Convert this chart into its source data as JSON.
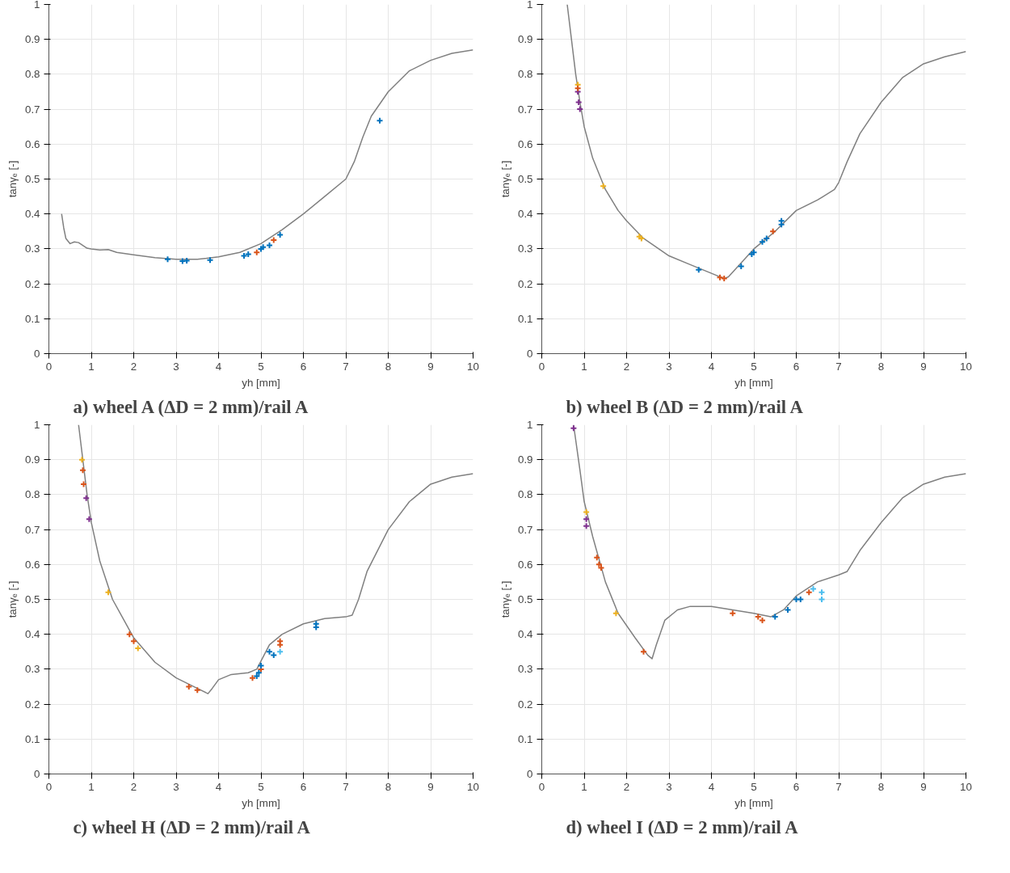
{
  "chart_data": [
    {
      "type": "line",
      "title": "a) wheel A (ΔD = 2 mm)/rail A",
      "xlabel": "yh [mm]",
      "ylabel": "tanγₑ [-]",
      "xlim": [
        0,
        10
      ],
      "ylim": [
        0,
        1
      ],
      "xticks": [
        0,
        1,
        2,
        3,
        4,
        5,
        6,
        7,
        8,
        9,
        10
      ],
      "yticks": [
        0,
        0.1,
        0.2,
        0.3,
        0.4,
        0.5,
        0.6,
        0.7,
        0.8,
        0.9,
        1
      ],
      "grid": true,
      "series": [
        {
          "color": "#808080",
          "marker": "none",
          "x": [
            0.3,
            0.35,
            0.4,
            0.5,
            0.6,
            0.7,
            0.8,
            0.9,
            1.0,
            1.2,
            1.4,
            1.6,
            2,
            2.5,
            3,
            3.5,
            4,
            4.5,
            5,
            5.5,
            6,
            6.5,
            7,
            7.2,
            7.4,
            7.6,
            8,
            8.5,
            9,
            9.5,
            10
          ],
          "values": [
            0.4,
            0.36,
            0.33,
            0.315,
            0.32,
            0.318,
            0.31,
            0.302,
            0.3,
            0.297,
            0.298,
            0.29,
            0.283,
            0.275,
            0.27,
            0.27,
            0.277,
            0.29,
            0.315,
            0.355,
            0.4,
            0.45,
            0.5,
            0.55,
            0.62,
            0.68,
            0.75,
            0.81,
            0.84,
            0.86,
            0.87
          ]
        },
        {
          "type": "scatter",
          "color": "#0072bd",
          "marker": "cross",
          "x": [
            2.8,
            3.15,
            3.25,
            3.8,
            4.6,
            4.7,
            5.0,
            5.05,
            5.2,
            5.45,
            7.8
          ],
          "values": [
            0.27,
            0.265,
            0.266,
            0.268,
            0.28,
            0.285,
            0.3,
            0.305,
            0.31,
            0.34,
            0.667
          ]
        },
        {
          "type": "scatter",
          "color": "#d95319",
          "marker": "cross",
          "x": [
            4.9,
            5.3
          ],
          "values": [
            0.29,
            0.325
          ]
        }
      ]
    },
    {
      "type": "line",
      "title": "b) wheel B (ΔD = 2 mm)/rail A",
      "xlabel": "yh [mm]",
      "ylabel": "tanγₑ [-]",
      "xlim": [
        0,
        10
      ],
      "ylim": [
        0,
        1
      ],
      "xticks": [
        0,
        1,
        2,
        3,
        4,
        5,
        6,
        7,
        8,
        9,
        10
      ],
      "yticks": [
        0,
        0.1,
        0.2,
        0.3,
        0.4,
        0.5,
        0.6,
        0.7,
        0.8,
        0.9,
        1
      ],
      "grid": true,
      "series": [
        {
          "color": "#808080",
          "marker": "none",
          "x": [
            0.6,
            0.7,
            0.8,
            0.9,
            1.0,
            1.2,
            1.5,
            1.8,
            2.0,
            2.4,
            3,
            3.5,
            4,
            4.3,
            4.4,
            4.7,
            5,
            5.5,
            6,
            6.5,
            6.9,
            7.0,
            7.2,
            7.5,
            8,
            8.5,
            9,
            9.5,
            10
          ],
          "values": [
            1.0,
            0.9,
            0.8,
            0.72,
            0.65,
            0.56,
            0.47,
            0.41,
            0.38,
            0.33,
            0.28,
            0.255,
            0.23,
            0.215,
            0.22,
            0.26,
            0.3,
            0.35,
            0.41,
            0.44,
            0.47,
            0.49,
            0.55,
            0.63,
            0.72,
            0.79,
            0.83,
            0.85,
            0.865
          ]
        },
        {
          "type": "scatter",
          "color": "#7e2f8e",
          "marker": "cross",
          "x": [
            0.85,
            0.87,
            0.9
          ],
          "values": [
            0.75,
            0.72,
            0.7
          ]
        },
        {
          "type": "scatter",
          "color": "#edb120",
          "marker": "cross",
          "x": [
            0.85,
            1.45,
            2.3,
            2.35
          ],
          "values": [
            0.77,
            0.48,
            0.335,
            0.33
          ]
        },
        {
          "type": "scatter",
          "color": "#d95319",
          "marker": "cross",
          "x": [
            0.85,
            4.2,
            4.3,
            5.45
          ],
          "values": [
            0.76,
            0.218,
            0.215,
            0.35
          ]
        },
        {
          "type": "scatter",
          "color": "#0072bd",
          "marker": "cross",
          "x": [
            3.7,
            4.7,
            4.95,
            5.0,
            5.2,
            5.3,
            5.65,
            5.65
          ],
          "values": [
            0.24,
            0.25,
            0.285,
            0.29,
            0.32,
            0.33,
            0.37,
            0.38
          ]
        }
      ]
    },
    {
      "type": "line",
      "title": "c) wheel H (ΔD = 2 mm)/rail A",
      "xlabel": "yh [mm]",
      "ylabel": "tanγₑ [-]",
      "xlim": [
        0,
        10
      ],
      "ylim": [
        0,
        1
      ],
      "xticks": [
        0,
        1,
        2,
        3,
        4,
        5,
        6,
        7,
        8,
        9,
        10
      ],
      "yticks": [
        0,
        0.1,
        0.2,
        0.3,
        0.4,
        0.5,
        0.6,
        0.7,
        0.8,
        0.9,
        1
      ],
      "grid": true,
      "series": [
        {
          "color": "#808080",
          "marker": "none",
          "x": [
            0.7,
            0.8,
            0.9,
            1.0,
            1.2,
            1.5,
            2,
            2.5,
            3,
            3.5,
            3.75,
            3.85,
            4,
            4.3,
            4.7,
            4.9,
            5.2,
            5.5,
            6,
            6.5,
            7,
            7.15,
            7.3,
            7.5,
            8,
            8.5,
            9,
            9.5,
            10
          ],
          "values": [
            1.0,
            0.9,
            0.8,
            0.72,
            0.61,
            0.5,
            0.39,
            0.32,
            0.275,
            0.245,
            0.23,
            0.245,
            0.27,
            0.285,
            0.29,
            0.3,
            0.37,
            0.4,
            0.43,
            0.445,
            0.45,
            0.455,
            0.5,
            0.58,
            0.7,
            0.78,
            0.83,
            0.85,
            0.86
          ]
        },
        {
          "type": "scatter",
          "color": "#edb120",
          "marker": "cross",
          "x": [
            0.78,
            1.4,
            2.1
          ],
          "values": [
            0.9,
            0.52,
            0.36
          ]
        },
        {
          "type": "scatter",
          "color": "#d95319",
          "marker": "cross",
          "x": [
            0.8,
            0.82,
            1.9,
            2.0,
            3.3,
            3.5,
            4.8,
            5.0,
            5.45,
            5.45
          ],
          "values": [
            0.87,
            0.83,
            0.4,
            0.38,
            0.25,
            0.24,
            0.275,
            0.3,
            0.38,
            0.37
          ]
        },
        {
          "type": "scatter",
          "color": "#7e2f8e",
          "marker": "cross",
          "x": [
            0.88,
            0.95
          ],
          "values": [
            0.79,
            0.73
          ]
        },
        {
          "type": "scatter",
          "color": "#0072bd",
          "marker": "cross",
          "x": [
            4.9,
            4.95,
            5.0,
            5.2,
            5.3,
            6.3,
            6.3
          ],
          "values": [
            0.28,
            0.29,
            0.31,
            0.35,
            0.34,
            0.43,
            0.42
          ]
        },
        {
          "type": "scatter",
          "color": "#4dbeee",
          "marker": "cross",
          "x": [
            5.45
          ],
          "values": [
            0.35
          ]
        }
      ]
    },
    {
      "type": "line",
      "title": "d) wheel I (ΔD = 2 mm)/rail A",
      "xlabel": "yh [mm]",
      "ylabel": "tanγₑ [-]",
      "xlim": [
        0,
        10
      ],
      "ylim": [
        0,
        1
      ],
      "xticks": [
        0,
        1,
        2,
        3,
        4,
        5,
        6,
        7,
        8,
        9,
        10
      ],
      "yticks": [
        0,
        0.1,
        0.2,
        0.3,
        0.4,
        0.5,
        0.6,
        0.7,
        0.8,
        0.9,
        1
      ],
      "grid": true,
      "series": [
        {
          "color": "#808080",
          "marker": "none",
          "x": [
            0.75,
            0.9,
            1.0,
            1.2,
            1.5,
            1.8,
            2.2,
            2.5,
            2.6,
            2.7,
            2.9,
            3.2,
            3.5,
            4,
            4.5,
            5,
            5.4,
            5.7,
            6,
            6.5,
            7,
            7.2,
            7.5,
            8,
            8.5,
            9,
            9.5,
            10
          ],
          "values": [
            1.0,
            0.87,
            0.78,
            0.68,
            0.55,
            0.46,
            0.39,
            0.34,
            0.33,
            0.37,
            0.44,
            0.47,
            0.48,
            0.48,
            0.47,
            0.46,
            0.45,
            0.47,
            0.51,
            0.55,
            0.57,
            0.58,
            0.64,
            0.72,
            0.79,
            0.83,
            0.85,
            0.86
          ]
        },
        {
          "type": "scatter",
          "color": "#7e2f8e",
          "marker": "cross",
          "x": [
            0.75,
            1.05,
            1.05
          ],
          "values": [
            0.99,
            0.71,
            0.73
          ]
        },
        {
          "type": "scatter",
          "color": "#edb120",
          "marker": "cross",
          "x": [
            1.05,
            1.75
          ],
          "values": [
            0.75,
            0.46
          ]
        },
        {
          "type": "scatter",
          "color": "#d95319",
          "marker": "cross",
          "x": [
            1.3,
            1.35,
            1.4,
            2.4,
            4.5,
            5.1,
            5.2,
            6.3
          ],
          "values": [
            0.62,
            0.6,
            0.59,
            0.35,
            0.46,
            0.45,
            0.44,
            0.52
          ]
        },
        {
          "type": "scatter",
          "color": "#0072bd",
          "marker": "cross",
          "x": [
            5.5,
            5.8,
            6.0,
            6.1
          ],
          "values": [
            0.45,
            0.47,
            0.5,
            0.5
          ]
        },
        {
          "type": "scatter",
          "color": "#4dbeee",
          "marker": "cross",
          "x": [
            6.4,
            6.6,
            6.6
          ],
          "values": [
            0.53,
            0.52,
            0.5
          ]
        }
      ]
    }
  ]
}
